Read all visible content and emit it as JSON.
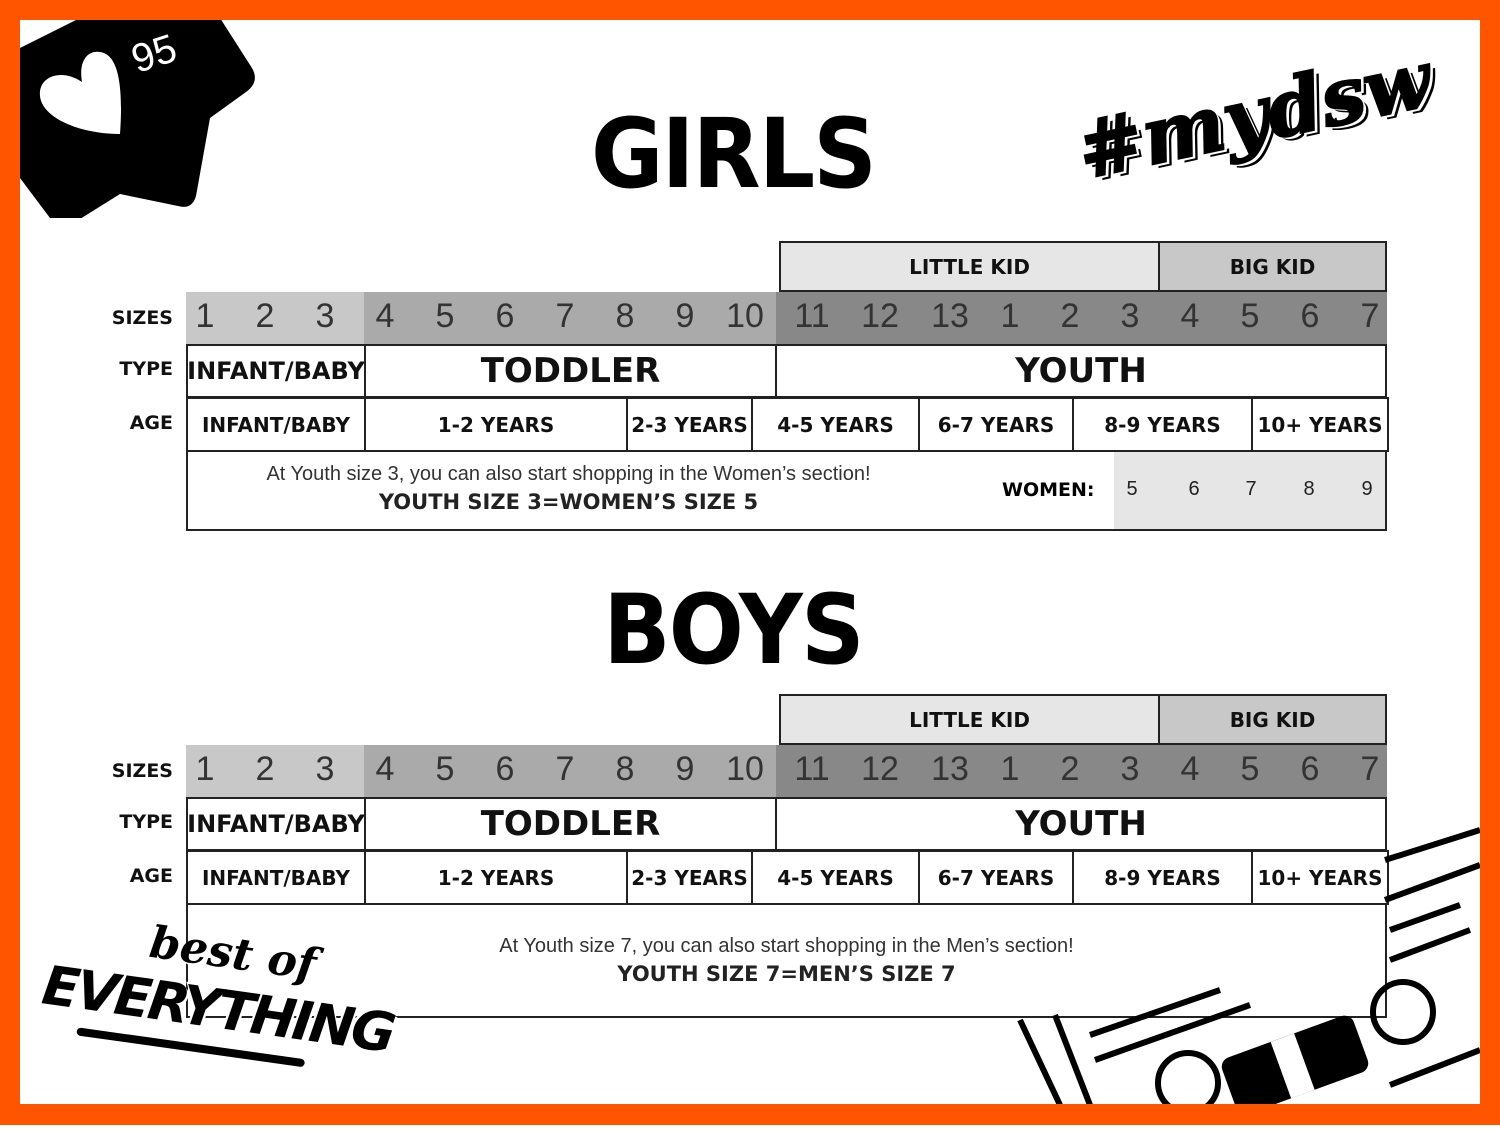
{
  "badge": {
    "count": "95",
    "icon": "heart-icon"
  },
  "hashtag": "#mydsw",
  "logo_text": "best of EVERYTHING",
  "colors": {
    "border": "#ff5500",
    "infant_sizes": "#c8c8c8",
    "toddler_sizes": "#aaaaaa",
    "youth_sizes": "#888888",
    "little_kid": "#e6e6e6",
    "big_kid": "#c8c8c8"
  },
  "row_labels": {
    "sizes": "SIZES",
    "type": "TYPE",
    "age": "AGE"
  },
  "groups": {
    "little_kid": "LITTLE KID",
    "big_kid": "BIG KID"
  },
  "sizes": [
    "1",
    "2",
    "3",
    "4",
    "5",
    "6",
    "7",
    "8",
    "9",
    "10",
    "11",
    "12",
    "13",
    "1",
    "2",
    "3",
    "4",
    "5",
    "6",
    "7"
  ],
  "types": [
    "INFANT/BABY",
    "TODDLER",
    "YOUTH"
  ],
  "ages": [
    "INFANT/BABY",
    "1-2 YEARS",
    "2-3 YEARS",
    "4-5 YEARS",
    "6-7 YEARS",
    "8-9 YEARS",
    "10+ YEARS"
  ],
  "girls": {
    "title": "GIRLS",
    "note_line1": "At Youth size 3, you can also start shopping in the Women’s section!",
    "note_line2": "YOUTH SIZE 3=WOMEN’S SIZE 5",
    "women_label": "WOMEN:",
    "women_sizes": [
      "5",
      "6",
      "7",
      "8",
      "9"
    ]
  },
  "boys": {
    "title": "BOYS",
    "note_line1": "At Youth size 7, you can also start shopping in the Men’s section!",
    "note_line2": "YOUTH SIZE 7=MEN’S SIZE 7"
  }
}
